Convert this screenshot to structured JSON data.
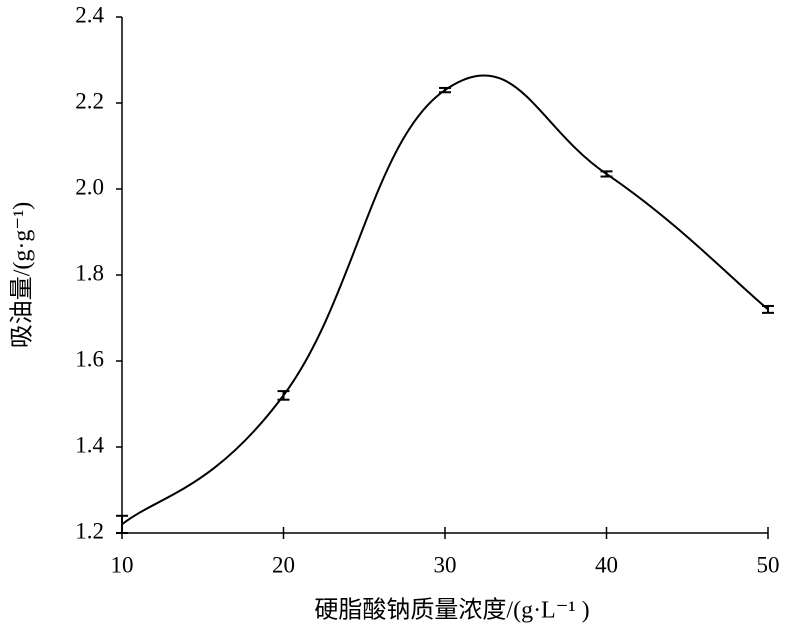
{
  "chart_data": {
    "type": "line",
    "x_label": "硬脂酸钠质量浓度/(g·L⁻¹ )",
    "y_label": "吸油量/(g·g⁻¹)",
    "x": [
      10,
      20,
      30,
      40,
      50
    ],
    "values": [
      1.22,
      1.52,
      2.23,
      2.035,
      1.72
    ],
    "errors": [
      0.02,
      0.01,
      0.005,
      0.006,
      0.008
    ],
    "color": "#000000",
    "xlim": [
      10,
      50
    ],
    "xticks": [
      10,
      20,
      30,
      40,
      50
    ],
    "ylim": [
      1.2,
      2.4
    ],
    "yticks": [
      1.2,
      1.4,
      1.6,
      1.8,
      {
        "value": 2.0,
        "label": "2.0"
      },
      2.2,
      2.4
    ],
    "grid": false
  }
}
